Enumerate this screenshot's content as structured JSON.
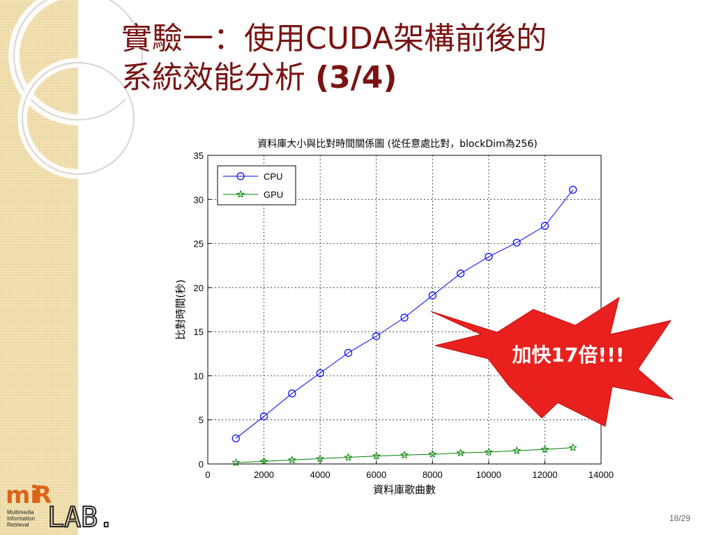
{
  "slide": {
    "title_line1": "實驗一：使用CUDA架構前後的",
    "title_line2_prefix": "系統效能分析 ",
    "title_line2_suffix": "(3/4)",
    "page_number": "18/29",
    "callout": "加快17倍!!!",
    "logo": {
      "brand_a": "mi",
      "brand_b": "R",
      "lab": "LAB.",
      "lines": [
        "Multimedia",
        "Information",
        "Retrieval"
      ]
    },
    "colors": {
      "title": "#7a1313",
      "band": "#f3e2b4",
      "burst_fill": "#e8211e",
      "cpu": "#0000ff",
      "gpu": "#008000",
      "logo": "#d9651b"
    }
  },
  "chart_data": {
    "type": "line",
    "title": "資料庫大小與比對時間關係圖 (從任意處比對，blockDim為256)",
    "xlabel": "資料庫歌曲數",
    "ylabel": "比對時間(秒)",
    "xlim": [
      0,
      14000
    ],
    "ylim": [
      0,
      35
    ],
    "xticks": [
      0,
      2000,
      4000,
      6000,
      8000,
      10000,
      12000,
      14000
    ],
    "yticks": [
      0,
      5,
      10,
      15,
      20,
      25,
      30,
      35
    ],
    "grid": true,
    "legend_position": "top-left",
    "x": [
      1000,
      2000,
      3000,
      4000,
      5000,
      6000,
      7000,
      8000,
      9000,
      10000,
      11000,
      12000,
      13000
    ],
    "series": [
      {
        "name": "CPU",
        "marker": "circle",
        "color": "#0000ff",
        "values": [
          2.9,
          5.4,
          8.0,
          10.3,
          12.6,
          14.5,
          16.6,
          19.1,
          21.6,
          23.5,
          25.1,
          27.0,
          31.1
        ]
      },
      {
        "name": "GPU",
        "marker": "star",
        "color": "#008000",
        "values": [
          0.15,
          0.3,
          0.45,
          0.6,
          0.75,
          0.9,
          1.0,
          1.1,
          1.25,
          1.35,
          1.5,
          1.65,
          1.85
        ]
      }
    ]
  }
}
